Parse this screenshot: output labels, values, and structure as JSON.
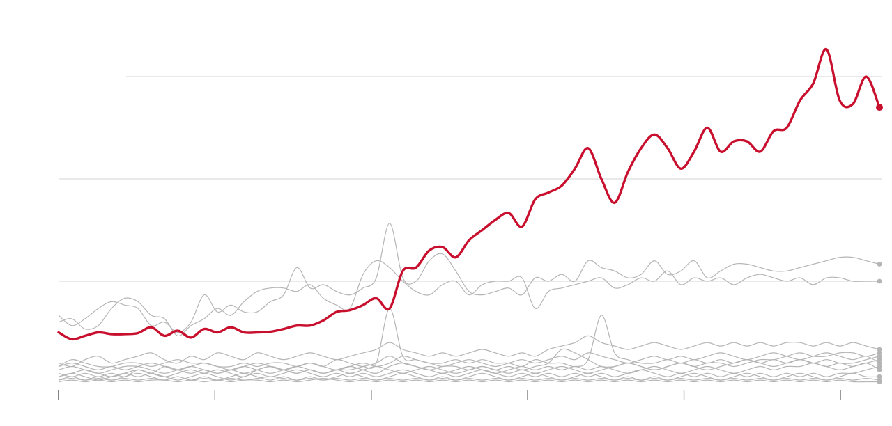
{
  "chart_data": {
    "type": "line",
    "title": "",
    "xlabel": "",
    "ylabel": "",
    "xlim": [
      0,
      105
    ],
    "ylim": [
      0,
      100
    ],
    "gridlines_y": [
      30,
      60,
      90
    ],
    "x_ticks": [
      0,
      20,
      40,
      60,
      80,
      100
    ],
    "grid": "horizontal",
    "legend": "none",
    "colors": {
      "highlight": "#c8102e",
      "background": "#b5b5b5",
      "grid": "#dcdcdc",
      "axis": "#333333"
    },
    "highlight": {
      "name": "",
      "values": [
        15,
        13,
        14,
        15,
        14.5,
        14.5,
        14.8,
        16.5,
        14,
        15.5,
        13.5,
        16,
        15,
        16.5,
        15,
        15,
        15.2,
        16,
        17,
        17,
        18.5,
        21,
        21.5,
        23,
        25,
        22,
        33,
        34,
        39,
        40,
        37,
        42,
        45,
        48,
        50,
        46,
        54,
        56,
        58,
        63,
        69,
        60,
        53,
        62,
        69,
        73,
        69,
        63,
        68,
        75,
        68,
        71,
        71,
        68,
        74,
        75,
        83,
        88,
        98,
        83,
        82,
        90,
        81
      ]
    },
    "series": [
      {
        "name": "",
        "values": [
          20,
          17,
          19,
          22,
          24,
          23,
          22,
          17,
          18,
          15,
          18,
          26,
          21,
          23,
          21,
          21,
          24,
          26,
          34,
          28,
          29,
          27,
          26,
          28,
          31,
          47,
          31,
          30,
          36,
          38,
          33,
          27,
          26,
          27,
          28,
          26,
          31,
          30,
          32,
          30,
          36,
          34,
          33,
          31,
          32,
          36,
          32,
          33,
          36,
          31,
          33,
          35,
          35,
          34,
          33,
          33,
          34,
          35,
          36,
          37,
          37,
          36,
          35
        ]
      },
      {
        "name": "",
        "values": [
          18,
          19,
          16,
          17,
          22,
          25,
          24,
          20,
          19,
          14,
          17,
          19,
          22,
          20,
          24,
          27,
          28,
          28,
          27,
          29,
          25,
          23,
          22,
          32,
          36,
          34,
          30,
          27,
          26,
          29,
          30,
          26,
          29,
          30,
          30,
          31,
          22,
          27,
          28,
          29,
          30,
          31,
          28,
          29,
          31,
          30,
          33,
          29,
          31,
          30,
          31,
          29,
          31,
          32,
          31,
          30,
          31,
          29,
          31,
          31,
          30,
          30,
          30
        ]
      },
      {
        "name": "",
        "values": [
          5,
          7,
          6,
          5,
          5,
          6,
          6,
          5,
          6,
          7,
          6,
          6,
          5,
          5,
          6,
          5,
          6,
          6,
          5,
          6,
          5,
          7,
          6,
          5,
          6,
          22,
          8,
          7,
          6,
          6,
          7,
          6,
          7,
          6,
          6,
          5,
          7,
          6,
          6,
          5,
          7,
          20,
          9,
          7,
          6,
          6,
          7,
          6,
          7,
          6,
          7,
          6,
          7,
          6,
          7,
          6,
          7,
          6,
          7,
          6,
          6,
          7,
          8
        ]
      },
      {
        "name": "",
        "values": [
          2,
          3,
          4,
          3,
          2,
          3,
          4,
          3,
          2,
          3,
          4,
          3,
          4,
          3,
          2,
          4,
          5,
          4,
          3,
          4,
          3,
          4,
          4,
          5,
          6,
          8,
          6,
          5,
          4,
          5,
          5,
          4,
          5,
          4,
          5,
          4,
          5,
          6,
          10,
          9,
          7,
          5,
          5,
          6,
          5,
          4,
          5,
          6,
          5,
          6,
          6,
          5,
          6,
          7,
          7,
          8,
          9,
          8,
          8,
          9,
          9,
          8,
          9
        ]
      },
      {
        "name": "",
        "values": [
          4,
          5,
          4,
          3,
          4,
          5,
          5,
          4,
          3,
          4,
          5,
          4,
          3,
          4,
          5,
          4,
          3,
          4,
          5,
          4,
          3,
          4,
          5,
          4,
          3,
          5,
          6,
          5,
          4,
          3,
          4,
          5,
          4,
          3,
          4,
          5,
          4,
          5,
          4,
          5,
          4,
          5,
          4,
          3,
          4,
          5,
          4,
          3,
          4,
          5,
          4,
          3,
          4,
          5,
          4,
          5,
          5,
          6,
          5,
          6,
          5,
          6,
          4
        ]
      },
      {
        "name": "",
        "values": [
          1,
          2,
          1,
          2,
          1,
          2,
          3,
          2,
          1,
          2,
          1,
          2,
          1,
          2,
          3,
          2,
          1,
          2,
          1,
          2,
          1,
          2,
          3,
          2,
          1,
          2,
          3,
          2,
          1,
          2,
          1,
          2,
          3,
          2,
          1,
          2,
          3,
          2,
          1,
          2,
          3,
          2,
          1,
          2,
          1,
          2,
          1,
          2,
          3,
          2,
          1,
          2,
          3,
          2,
          1,
          2,
          3,
          2,
          1,
          2,
          3,
          2,
          2
        ]
      },
      {
        "name": "",
        "values": [
          0.5,
          1,
          0.5,
          1,
          0.5,
          1,
          0.5,
          1,
          1,
          0.5,
          1,
          0.5,
          1,
          0.5,
          1,
          1,
          0.5,
          1,
          0.5,
          1,
          1.5,
          1,
          0.5,
          1,
          0.5,
          1,
          0.5,
          1,
          0.5,
          1,
          0.5,
          1,
          0.5,
          1,
          0.5,
          1,
          0.5,
          1,
          0.5,
          1,
          0.5,
          1,
          0.5,
          1,
          0.5,
          1,
          0.5,
          1,
          0.5,
          1,
          0.5,
          1,
          0.5,
          1,
          0.5,
          1,
          0.5,
          1,
          0.5,
          1,
          0.5,
          0.5,
          0.5
        ]
      },
      {
        "name": "",
        "values": [
          6,
          5,
          7,
          8,
          6,
          7,
          8,
          9,
          7,
          6,
          8,
          7,
          9,
          8,
          7,
          9,
          8,
          7,
          8,
          9,
          8,
          7,
          8,
          9,
          10,
          12,
          10,
          9,
          8,
          9,
          8,
          9,
          10,
          9,
          8,
          9,
          8,
          10,
          11,
          12,
          14,
          12,
          11,
          10,
          11,
          12,
          11,
          10,
          11,
          12,
          11,
          12,
          11,
          12,
          11,
          12,
          12,
          11,
          12,
          11,
          12,
          11,
          10
        ]
      },
      {
        "name": "",
        "values": [
          3,
          2,
          3,
          2,
          3,
          2,
          4,
          3,
          5,
          4,
          3,
          4,
          3,
          4,
          3,
          4,
          5,
          4,
          3,
          4,
          3,
          4,
          3,
          4,
          5,
          4,
          3,
          4,
          5,
          4,
          3,
          4,
          5,
          4,
          3,
          4,
          3,
          4,
          5,
          4,
          3,
          4,
          5,
          6,
          5,
          4,
          5,
          6,
          5,
          4,
          5,
          6,
          7,
          6,
          5,
          6,
          7,
          6,
          5,
          4,
          5,
          6,
          7
        ]
      },
      {
        "name": "",
        "values": [
          1,
          1.5,
          1,
          1.5,
          1,
          1.5,
          1,
          1.5,
          1,
          2,
          1,
          1.5,
          1,
          1.5,
          1,
          1.5,
          2,
          1.5,
          1,
          1.5,
          1,
          1.5,
          1,
          1.5,
          1,
          1.5,
          1,
          1.5,
          1,
          1.5,
          1,
          1.5,
          1,
          1.5,
          1,
          1.5,
          1,
          1.5,
          1,
          1.5,
          1,
          1.5,
          1,
          1.5,
          1,
          1.5,
          1,
          1.5,
          1,
          1.5,
          1,
          1.5,
          1,
          1.5,
          1,
          1.5,
          1,
          1.5,
          1,
          1.5,
          1,
          1.5,
          1
        ]
      },
      {
        "name": "",
        "values": [
          5,
          6,
          5,
          4,
          5,
          4,
          5,
          6,
          5,
          4,
          5,
          6,
          5,
          4,
          5,
          6,
          5,
          4,
          5,
          6,
          5,
          4,
          5,
          6,
          5,
          6,
          8,
          7,
          6,
          5,
          6,
          7,
          6,
          5,
          6,
          7,
          6,
          7,
          8,
          7,
          9,
          8,
          7,
          6,
          7,
          8,
          7,
          8,
          7,
          8,
          9,
          8,
          7,
          8,
          9,
          8,
          7,
          8,
          9,
          8,
          7,
          8,
          6
        ]
      },
      {
        "name": "",
        "values": [
          2,
          3,
          2,
          1,
          2,
          3,
          2,
          3,
          2,
          1,
          2,
          3,
          2,
          1,
          2,
          3,
          2,
          3,
          4,
          3,
          2,
          3,
          2,
          3,
          2,
          3,
          4,
          3,
          2,
          3,
          2,
          3,
          4,
          3,
          2,
          3,
          2,
          3,
          2,
          3,
          2,
          3,
          2,
          3,
          4,
          3,
          2,
          3,
          2,
          3,
          2,
          3,
          2,
          3,
          2,
          3,
          2,
          3,
          2,
          3,
          3,
          4,
          5
        ]
      }
    ]
  }
}
